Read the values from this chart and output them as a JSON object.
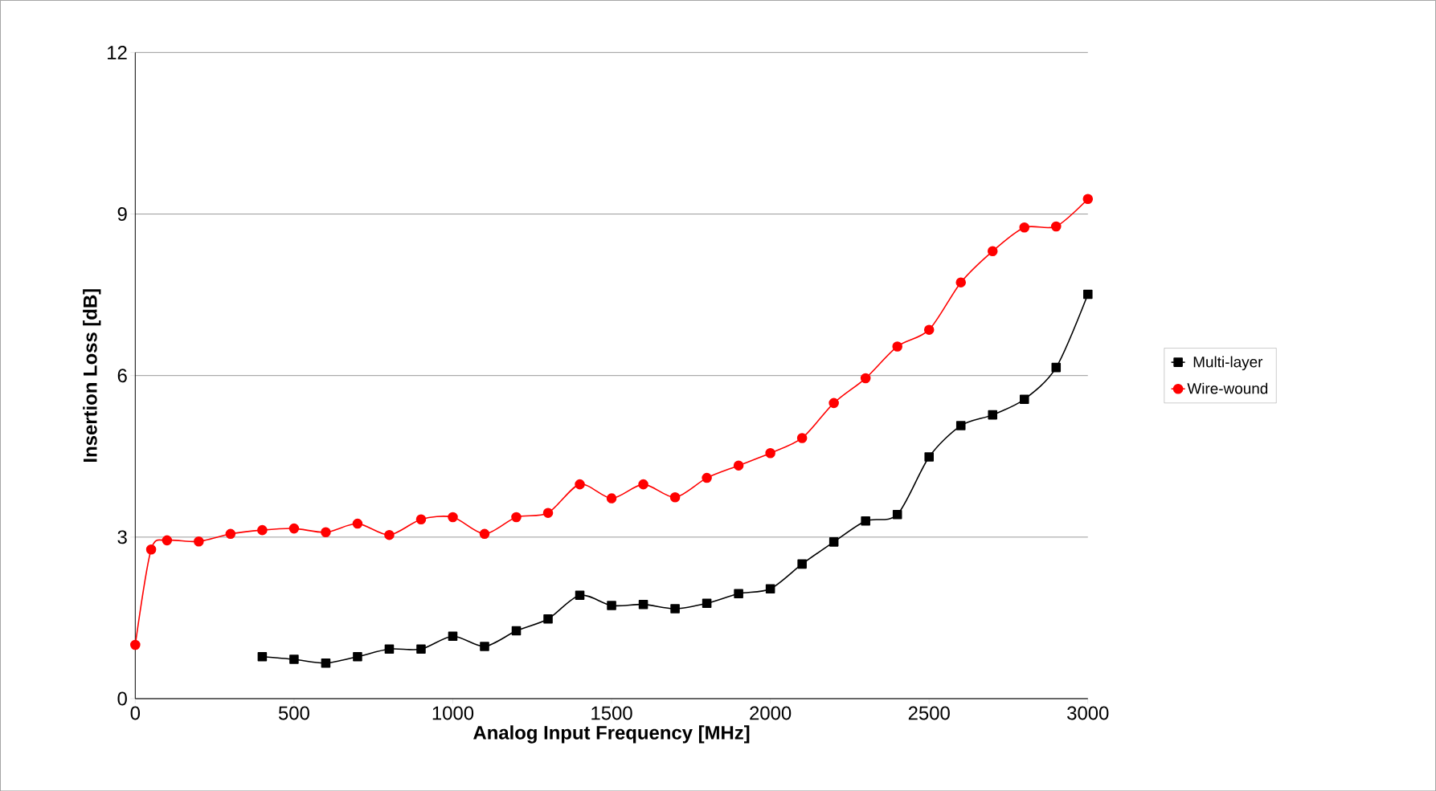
{
  "chart_data": {
    "type": "line",
    "xlabel": "Analog Input Frequency [MHz]",
    "ylabel": "Insertion Loss [dB]",
    "xlim": [
      0,
      3000
    ],
    "xticks": [
      0,
      500,
      1000,
      1500,
      2000,
      2500,
      3000
    ],
    "ylim": [
      0,
      12
    ],
    "yticks": [
      0,
      3,
      6,
      9,
      12
    ],
    "grid": "y",
    "legend": "right",
    "series": [
      {
        "name": "Multi-layer",
        "color": "#000000",
        "marker": "square",
        "x": [
          400,
          500,
          600,
          700,
          800,
          900,
          1000,
          1100,
          1200,
          1300,
          1400,
          1500,
          1600,
          1700,
          1800,
          1900,
          2000,
          2100,
          2200,
          2300,
          2400,
          2500,
          2600,
          2700,
          2800,
          2900,
          3000
        ],
        "values": [
          0.78,
          0.73,
          0.66,
          0.78,
          0.92,
          0.92,
          1.16,
          0.97,
          1.26,
          1.48,
          1.92,
          1.73,
          1.75,
          1.67,
          1.77,
          1.95,
          2.04,
          2.5,
          2.91,
          3.3,
          3.42,
          4.49,
          5.07,
          5.27,
          5.56,
          6.15,
          7.51
        ]
      },
      {
        "name": "Wire-wound",
        "color": "#ff0000",
        "marker": "circle",
        "x": [
          0,
          50,
          100,
          200,
          300,
          400,
          500,
          600,
          700,
          800,
          900,
          1000,
          1100,
          1200,
          1300,
          1400,
          1500,
          1600,
          1700,
          1800,
          1900,
          2000,
          2100,
          2200,
          2300,
          2400,
          2500,
          2600,
          2700,
          2800,
          2900,
          3000
        ],
        "values": [
          1.0,
          2.77,
          2.94,
          2.92,
          3.06,
          3.13,
          3.16,
          3.09,
          3.25,
          3.04,
          3.33,
          3.37,
          3.06,
          3.37,
          3.45,
          3.98,
          3.72,
          3.98,
          3.74,
          4.1,
          4.33,
          4.56,
          4.84,
          5.49,
          5.95,
          6.54,
          6.85,
          7.73,
          8.31,
          8.75,
          8.77,
          9.28
        ]
      }
    ]
  }
}
